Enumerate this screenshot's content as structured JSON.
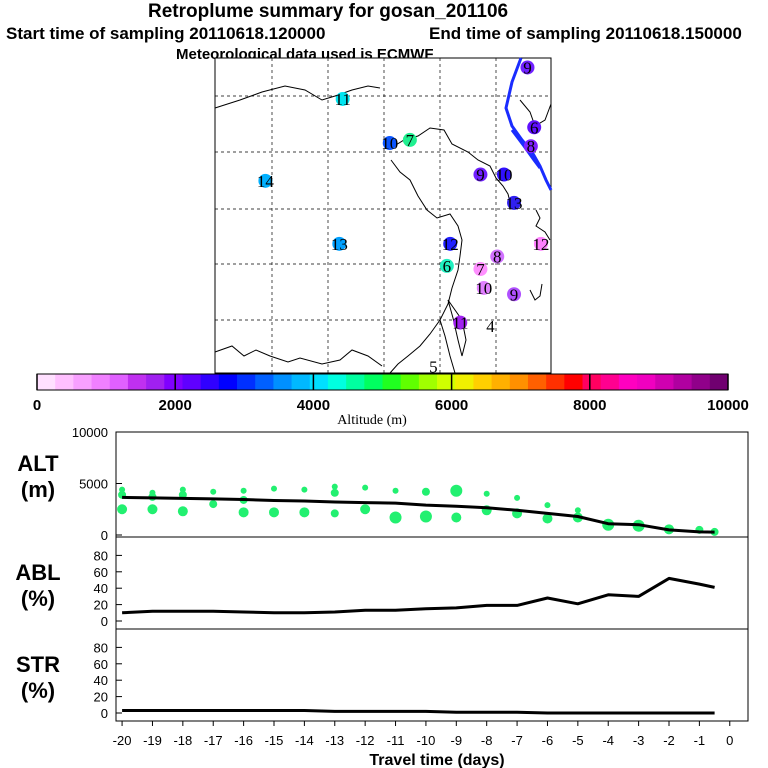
{
  "header": {
    "title": "Retroplume summary for gosan_201106",
    "start_label": "Start time of sampling 20110618.120000",
    "end_label": "End time of sampling 20110618.150000",
    "met_label": "Meteorological data used is ECMWF"
  },
  "map": {
    "markers": [
      {
        "label": "11",
        "lon_frac": 0.38,
        "lat_frac": 0.13,
        "color": "#00e5f0"
      },
      {
        "label": "10",
        "lon_frac": 0.52,
        "lat_frac": 0.27,
        "color": "#0a55ff"
      },
      {
        "label": "7",
        "lon_frac": 0.58,
        "lat_frac": 0.26,
        "color": "#20f090"
      },
      {
        "label": "14",
        "lon_frac": 0.15,
        "lat_frac": 0.39,
        "color": "#00b0ff"
      },
      {
        "label": "13",
        "lon_frac": 0.37,
        "lat_frac": 0.59,
        "color": "#00a0ff"
      },
      {
        "label": "12",
        "lon_frac": 0.7,
        "lat_frac": 0.59,
        "color": "#2020ff"
      },
      {
        "label": "6",
        "lon_frac": 0.69,
        "lat_frac": 0.66,
        "color": "#20f0c0"
      },
      {
        "label": "7",
        "lon_frac": 0.79,
        "lat_frac": 0.67,
        "color": "#ff90ff"
      },
      {
        "label": "8",
        "lon_frac": 0.84,
        "lat_frac": 0.63,
        "color": "#d070ff"
      },
      {
        "label": "10",
        "lon_frac": 0.8,
        "lat_frac": 0.73,
        "color": "#e080ff"
      },
      {
        "label": "9",
        "lon_frac": 0.89,
        "lat_frac": 0.75,
        "color": "#b050ff"
      },
      {
        "label": "11",
        "lon_frac": 0.73,
        "lat_frac": 0.84,
        "color": "#a020f0"
      },
      {
        "label": "4",
        "lon_frac": 0.82,
        "lat_frac": 0.85,
        "color": "#ffffff"
      },
      {
        "label": "5",
        "lon_frac": 0.65,
        "lat_frac": 0.98,
        "color": "#ffffff"
      },
      {
        "label": "9",
        "lon_frac": 0.79,
        "lat_frac": 0.37,
        "color": "#7020ff"
      },
      {
        "label": "10",
        "lon_frac": 0.86,
        "lat_frac": 0.37,
        "color": "#3010ff"
      },
      {
        "label": "13",
        "lon_frac": 0.89,
        "lat_frac": 0.46,
        "color": "#3020f0"
      },
      {
        "label": "8",
        "lon_frac": 0.94,
        "lat_frac": 0.28,
        "color": "#8020ff"
      },
      {
        "label": "6",
        "lon_frac": 0.95,
        "lat_frac": 0.22,
        "color": "#6010ff"
      },
      {
        "label": "9",
        "lon_frac": 0.93,
        "lat_frac": 0.03,
        "color": "#7020ff"
      },
      {
        "label": "12",
        "lon_frac": 0.97,
        "lat_frac": 0.59,
        "color": "#ff80ff"
      }
    ]
  },
  "colorbar": {
    "tick_labels": [
      "0",
      "2000",
      "4000",
      "6000",
      "8000",
      "10000"
    ],
    "axis_title": "Altitude (m)",
    "colors": [
      "#ffe0ff",
      "#ffc0ff",
      "#f8a0ff",
      "#f080ff",
      "#e060ff",
      "#c030f0",
      "#a020f0",
      "#8000ff",
      "#6000ff",
      "#3000ff",
      "#0000ff",
      "#0030ff",
      "#0060ff",
      "#0090ff",
      "#00b8ff",
      "#00e0ff",
      "#00ffe0",
      "#00ffa0",
      "#00ff60",
      "#20ff20",
      "#60ff00",
      "#a0ff00",
      "#d0ff00",
      "#f0f000",
      "#ffd000",
      "#ffb000",
      "#ff9000",
      "#ff6000",
      "#ff3000",
      "#ff0000",
      "#ff0060",
      "#ff0090",
      "#ff00c0",
      "#f000c0",
      "#d000b0",
      "#b000a0",
      "#90008a",
      "#700070"
    ]
  },
  "chart_data": [
    {
      "type": "line",
      "name": "ALT",
      "ylabel": "ALT (m)",
      "ylabel_line1": "ALT",
      "ylabel_line2": "(m)",
      "ylim": [
        0,
        10000
      ],
      "yticks": [
        "10000",
        "5000",
        "0"
      ],
      "x": [
        -20,
        -19,
        -18,
        -17,
        -16,
        -15,
        -14,
        -13,
        -12,
        -11,
        -10,
        -9,
        -8,
        -7,
        -6,
        -5,
        -4,
        -3,
        -2,
        -1,
        -0.5
      ],
      "values": [
        3650,
        3600,
        3550,
        3500,
        3450,
        3350,
        3300,
        3200,
        3150,
        3100,
        2900,
        2800,
        2650,
        2400,
        2100,
        1800,
        1100,
        1000,
        500,
        300,
        280
      ],
      "scatter_x": [
        -20,
        -20,
        -20,
        -19,
        -19,
        -19,
        -18,
        -18,
        -18,
        -17,
        -17,
        -16,
        -16,
        -16,
        -15,
        -15,
        -14,
        -14,
        -13,
        -13,
        -13,
        -12,
        -12,
        -11,
        -11,
        -10,
        -10,
        -9,
        -9,
        -8,
        -8,
        -7,
        -7,
        -6,
        -6,
        -5,
        -5,
        -4,
        -3,
        -2,
        -1,
        -0.5
      ],
      "scatter_y": [
        4400,
        3900,
        2500,
        4100,
        3700,
        2500,
        4400,
        3900,
        2300,
        4200,
        3000,
        4300,
        3400,
        2200,
        4500,
        2200,
        4400,
        2200,
        4700,
        4100,
        2100,
        4600,
        2500,
        4300,
        1700,
        4200,
        1800,
        4300,
        1700,
        4000,
        2400,
        3600,
        2100,
        2900,
        1600,
        2400,
        1700,
        1000,
        900,
        550,
        500,
        300
      ],
      "scatter_r": [
        3,
        4,
        5,
        3,
        4,
        5,
        3,
        4,
        5,
        3,
        4,
        3,
        4,
        5,
        3,
        5,
        3,
        5,
        3,
        4,
        4,
        3,
        5,
        3,
        6,
        4,
        6,
        6,
        5,
        3,
        5,
        3,
        5,
        3,
        5,
        3,
        5,
        6,
        6,
        5,
        4,
        4
      ],
      "scatter_color": "#22f070",
      "line_color": "#000000"
    },
    {
      "type": "line",
      "name": "ABL",
      "ylabel": "ABL (%)",
      "ylabel_line1": "ABL",
      "ylabel_line2": "(%)",
      "ylim": [
        0,
        100
      ],
      "yticks": [
        "80",
        "60",
        "40",
        "20",
        "0"
      ],
      "x": [
        -20,
        -19,
        -18,
        -17,
        -16,
        -15,
        -14,
        -13,
        -12,
        -11,
        -10,
        -9,
        -8,
        -7,
        -6,
        -5,
        -4,
        -3,
        -2,
        -1,
        -0.5
      ],
      "values": [
        10,
        12,
        12,
        12,
        11,
        10,
        10,
        11,
        13,
        13,
        15,
        16,
        19,
        19,
        28,
        21,
        32,
        30,
        52,
        45,
        41
      ],
      "line_color": "#000000"
    },
    {
      "type": "line",
      "name": "STR",
      "ylabel": "STR (%)",
      "ylabel_line1": "STR",
      "ylabel_line2": "(%)",
      "ylim": [
        0,
        100
      ],
      "yticks": [
        "80",
        "60",
        "40",
        "20",
        "0"
      ],
      "x": [
        -20,
        -19,
        -18,
        -17,
        -16,
        -15,
        -14,
        -13,
        -12,
        -11,
        -10,
        -9,
        -8,
        -7,
        -6,
        -5,
        -4,
        -3,
        -2,
        -1,
        -0.5
      ],
      "values": [
        3,
        3,
        3,
        3,
        3,
        3,
        3,
        2,
        2,
        2,
        2,
        1,
        1,
        1,
        0,
        0,
        0,
        0,
        0,
        0,
        0
      ],
      "line_color": "#000000"
    }
  ],
  "x_axis": {
    "label": "Travel time (days)",
    "ticks": [
      "-20",
      "-19",
      "-18",
      "-17",
      "-16",
      "-15",
      "-14",
      "-13",
      "-12",
      "-11",
      "-10",
      "-9",
      "-8",
      "-7",
      "-6",
      "-5",
      "-4",
      "-3",
      "-2",
      "-1",
      "0"
    ]
  }
}
